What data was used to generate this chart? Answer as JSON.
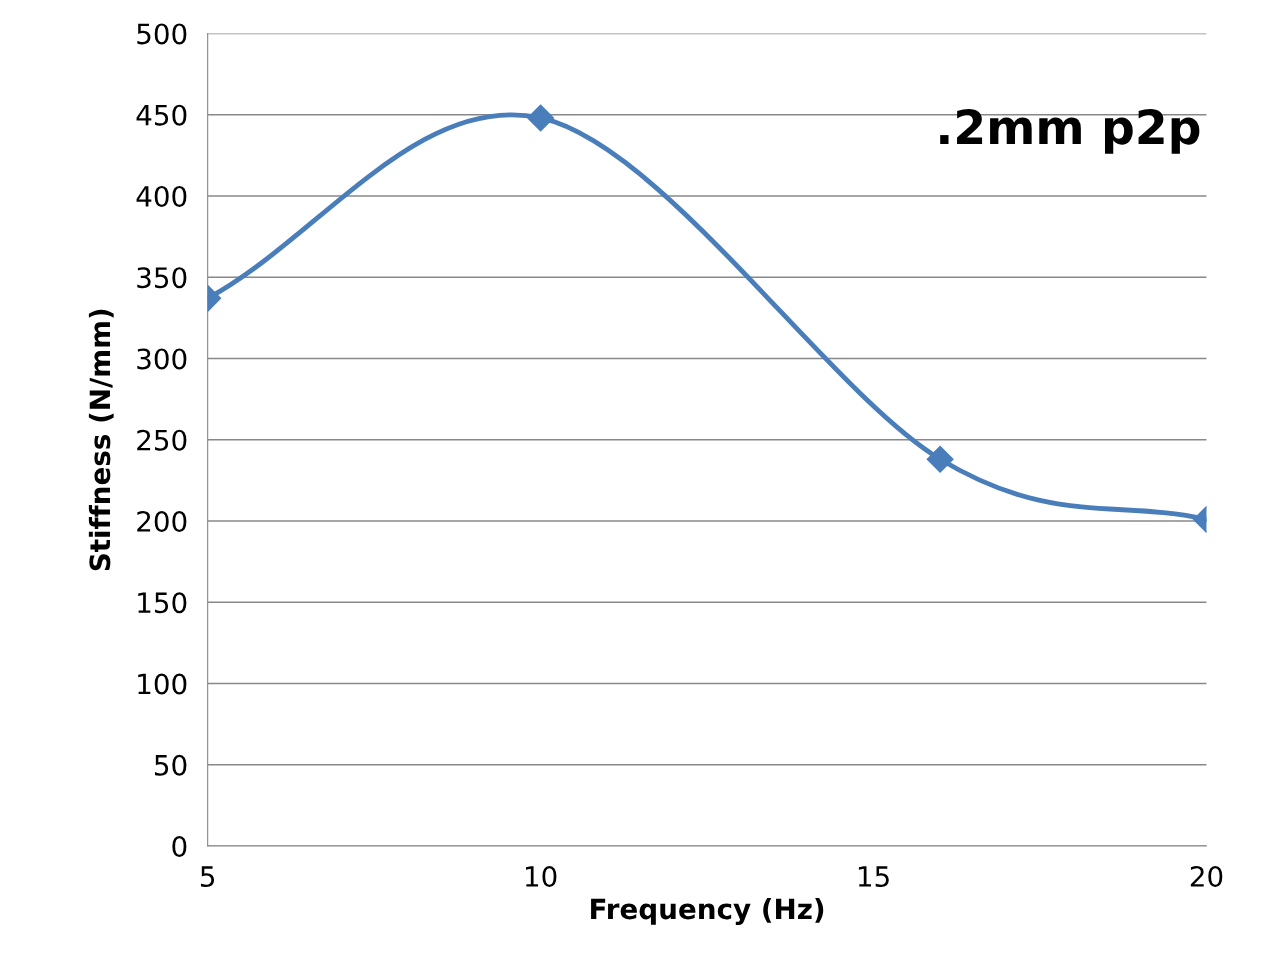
{
  "chart_data": {
    "type": "line",
    "xlabel": "Frequency (Hz)",
    "ylabel": "Stiffness (N/mm)",
    "x": [
      5,
      10,
      16,
      20
    ],
    "series": [
      {
        "color": "#4a7ebb",
        "values": [
          337,
          448,
          238,
          201
        ]
      }
    ],
    "xlim": [
      5,
      20
    ],
    "xticks": [
      5,
      10,
      15,
      20
    ],
    "ylim": [
      0,
      500
    ],
    "yticks": [
      0,
      50,
      100,
      150,
      200,
      250,
      300,
      350,
      400,
      450,
      500
    ],
    "grid": "y",
    "marker": "diamond",
    "line_style": "solid",
    "annotations": [
      ".2mm p2p"
    ]
  }
}
